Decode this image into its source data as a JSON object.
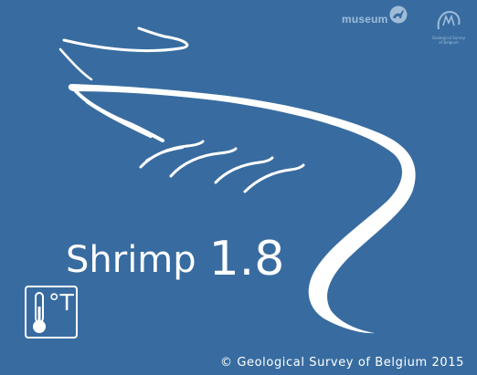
{
  "splash": {
    "background_color": "#386ca0",
    "app_name": "Shrimp",
    "version": "1.8",
    "copyright": "© Geological Survey of Belgium 2015",
    "app_icon": {
      "name": "thermometer-icon",
      "label": "°T"
    }
  },
  "logos": {
    "museum_text": "museum",
    "gsb_text_line1": "Geological Survey",
    "gsb_text_line2": "of Belgium"
  }
}
